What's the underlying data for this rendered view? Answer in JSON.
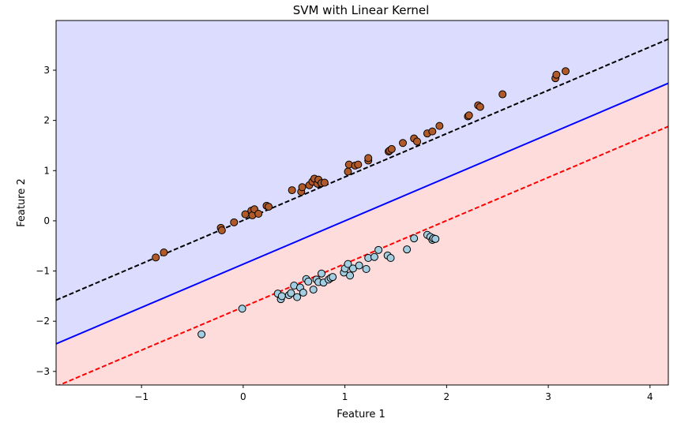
{
  "chart_data": {
    "type": "scatter",
    "title": "SVM with Linear Kernel",
    "xlabel": "Feature 1",
    "ylabel": "Feature 2",
    "xlim": [
      -1.84,
      4.18
    ],
    "ylim": [
      -3.27,
      3.99
    ],
    "x_ticks": [
      -1,
      0,
      1,
      2,
      3,
      4
    ],
    "y_ticks": [
      -3,
      -2,
      -1,
      0,
      1,
      2,
      3
    ],
    "grid": false,
    "legend": "none",
    "regions": [
      {
        "label": "class 1 region",
        "side": "above",
        "color": "#dcdcfe"
      },
      {
        "label": "class 0 region",
        "side": "below",
        "color": "#fedcdc"
      }
    ],
    "lines": [
      {
        "role": "decision-boundary",
        "color": "#0000ff",
        "style": "solid",
        "points": [
          [
            -1.84,
            -2.45
          ],
          [
            4.18,
            2.74
          ]
        ]
      },
      {
        "role": "margin-upper",
        "color": "#000000",
        "style": "dashed",
        "points": [
          [
            -1.84,
            -1.58
          ],
          [
            4.18,
            3.62
          ]
        ]
      },
      {
        "role": "margin-lower",
        "color": "#ff0000",
        "style": "dashed",
        "points": [
          [
            -1.84,
            -3.3
          ],
          [
            4.18,
            1.88
          ]
        ]
      }
    ],
    "series": [
      {
        "color": "#b05a2a",
        "points": [
          [
            -0.86,
            -0.73
          ],
          [
            -0.78,
            -0.63
          ],
          [
            -0.22,
            -0.14
          ],
          [
            -0.21,
            -0.19
          ],
          [
            -0.09,
            -0.03
          ],
          [
            0.02,
            0.13
          ],
          [
            0.08,
            0.2
          ],
          [
            0.09,
            0.11
          ],
          [
            0.11,
            0.23
          ],
          [
            0.15,
            0.14
          ],
          [
            0.23,
            0.3
          ],
          [
            0.25,
            0.28
          ],
          [
            0.48,
            0.61
          ],
          [
            0.57,
            0.58
          ],
          [
            0.58,
            0.67
          ],
          [
            0.65,
            0.71
          ],
          [
            0.68,
            0.78
          ],
          [
            0.7,
            0.84
          ],
          [
            0.73,
            0.74
          ],
          [
            0.74,
            0.82
          ],
          [
            0.77,
            0.75
          ],
          [
            0.8,
            0.76
          ],
          [
            1.03,
            0.98
          ],
          [
            1.04,
            1.12
          ],
          [
            1.1,
            1.1
          ],
          [
            1.13,
            1.12
          ],
          [
            1.23,
            1.2
          ],
          [
            1.23,
            1.25
          ],
          [
            1.43,
            1.38
          ],
          [
            1.44,
            1.4
          ],
          [
            1.46,
            1.43
          ],
          [
            1.57,
            1.55
          ],
          [
            1.68,
            1.64
          ],
          [
            1.71,
            1.58
          ],
          [
            1.81,
            1.74
          ],
          [
            1.86,
            1.78
          ],
          [
            1.93,
            1.89
          ],
          [
            2.21,
            2.08
          ],
          [
            2.22,
            2.1
          ],
          [
            2.31,
            2.3
          ],
          [
            2.33,
            2.27
          ],
          [
            2.55,
            2.52
          ],
          [
            3.07,
            2.84
          ],
          [
            3.08,
            2.91
          ],
          [
            3.17,
            2.98
          ]
        ]
      },
      {
        "color": "#a3cde0",
        "points": [
          [
            -0.41,
            -2.26
          ],
          [
            -0.01,
            -1.75
          ],
          [
            0.34,
            -1.45
          ],
          [
            0.37,
            -1.56
          ],
          [
            0.38,
            -1.5
          ],
          [
            0.45,
            -1.48
          ],
          [
            0.47,
            -1.44
          ],
          [
            0.5,
            -1.29
          ],
          [
            0.53,
            -1.52
          ],
          [
            0.56,
            -1.33
          ],
          [
            0.59,
            -1.43
          ],
          [
            0.62,
            -1.16
          ],
          [
            0.64,
            -1.21
          ],
          [
            0.69,
            -1.37
          ],
          [
            0.72,
            -1.17
          ],
          [
            0.74,
            -1.22
          ],
          [
            0.77,
            -1.05
          ],
          [
            0.79,
            -1.23
          ],
          [
            0.84,
            -1.17
          ],
          [
            0.86,
            -1.14
          ],
          [
            0.88,
            -1.12
          ],
          [
            0.99,
            -1.03
          ],
          [
            1.0,
            -0.95
          ],
          [
            1.03,
            -0.86
          ],
          [
            1.05,
            -1.09
          ],
          [
            1.08,
            -0.95
          ],
          [
            1.14,
            -0.89
          ],
          [
            1.21,
            -0.96
          ],
          [
            1.23,
            -0.74
          ],
          [
            1.29,
            -0.72
          ],
          [
            1.33,
            -0.58
          ],
          [
            1.42,
            -0.69
          ],
          [
            1.45,
            -0.74
          ],
          [
            1.61,
            -0.57
          ],
          [
            1.68,
            -0.35
          ],
          [
            1.81,
            -0.28
          ],
          [
            1.84,
            -0.32
          ],
          [
            1.86,
            -0.38
          ],
          [
            1.87,
            -0.35
          ],
          [
            1.89,
            -0.36
          ]
        ]
      }
    ]
  }
}
